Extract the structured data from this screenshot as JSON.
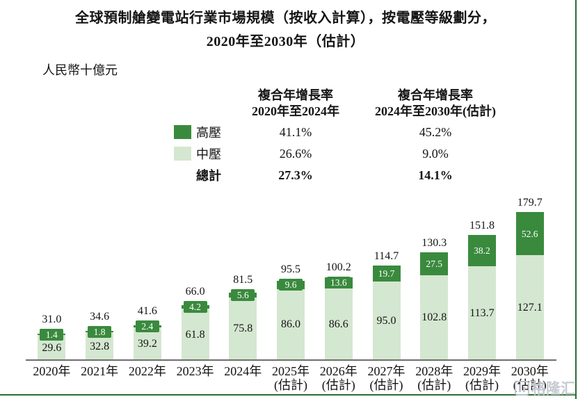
{
  "title": {
    "line1": "全球預制艙變電站行業市場規模（按收入計算），按電壓等級劃分，",
    "line2": "2020年至2030年（估計）"
  },
  "unit_label": "人民幣十億元",
  "cagr_table": {
    "col1_header_line1": "複合年增長率",
    "col1_header_line2": "2020年至2024年",
    "col2_header_line1": "複合年增長率",
    "col2_header_line2": "2024年至2030年(估計)",
    "rows": [
      {
        "label": "高壓",
        "swatch": "high",
        "cagr_2020_2024": "41.1%",
        "cagr_2024_2030": "45.2%"
      },
      {
        "label": "中壓",
        "swatch": "mid",
        "cagr_2020_2024": "26.6%",
        "cagr_2024_2030": "9.0%"
      },
      {
        "label": "總計",
        "swatch": null,
        "cagr_2020_2024": "27.3%",
        "cagr_2024_2030": "14.1%"
      }
    ]
  },
  "chart_data": {
    "type": "bar",
    "stacked": true,
    "title": "全球預制艙變電站行業市場規模（按收入計算），按電壓等級劃分，2020年至2030年（估計）",
    "ylabel": "人民幣十億元",
    "ylim": [
      0,
      185
    ],
    "grid": false,
    "legend_position": "top",
    "estimated_suffix": "(估計)",
    "categories": [
      {
        "label": "2020年",
        "estimated": false
      },
      {
        "label": "2021年",
        "estimated": false
      },
      {
        "label": "2022年",
        "estimated": false
      },
      {
        "label": "2023年",
        "estimated": false
      },
      {
        "label": "2024年",
        "estimated": false
      },
      {
        "label": "2025年",
        "estimated": true
      },
      {
        "label": "2026年",
        "estimated": true
      },
      {
        "label": "2027年",
        "estimated": true
      },
      {
        "label": "2028年",
        "estimated": true
      },
      {
        "label": "2029年",
        "estimated": true
      },
      {
        "label": "2030年",
        "estimated": true
      }
    ],
    "series": [
      {
        "name": "高壓",
        "color": "#3a8a3e",
        "values": [
          1.4,
          1.8,
          2.4,
          4.2,
          5.6,
          9.6,
          13.6,
          19.7,
          27.5,
          38.2,
          52.6
        ]
      },
      {
        "name": "中壓",
        "color": "#d4e7d0",
        "values": [
          29.6,
          32.8,
          39.2,
          61.8,
          75.8,
          86.0,
          86.6,
          95.0,
          102.8,
          113.7,
          127.1
        ]
      }
    ],
    "totals": [
      31.0,
      34.6,
      41.6,
      66.0,
      81.5,
      95.5,
      100.2,
      114.7,
      130.3,
      151.8,
      179.7
    ]
  },
  "colors": {
    "high_voltage": "#3a8a3e",
    "medium_voltage": "#d4e7d0",
    "page_border": "#2d6b33",
    "axis_line": "#6e6e6e"
  },
  "watermark": {
    "text": "格隆汇"
  }
}
